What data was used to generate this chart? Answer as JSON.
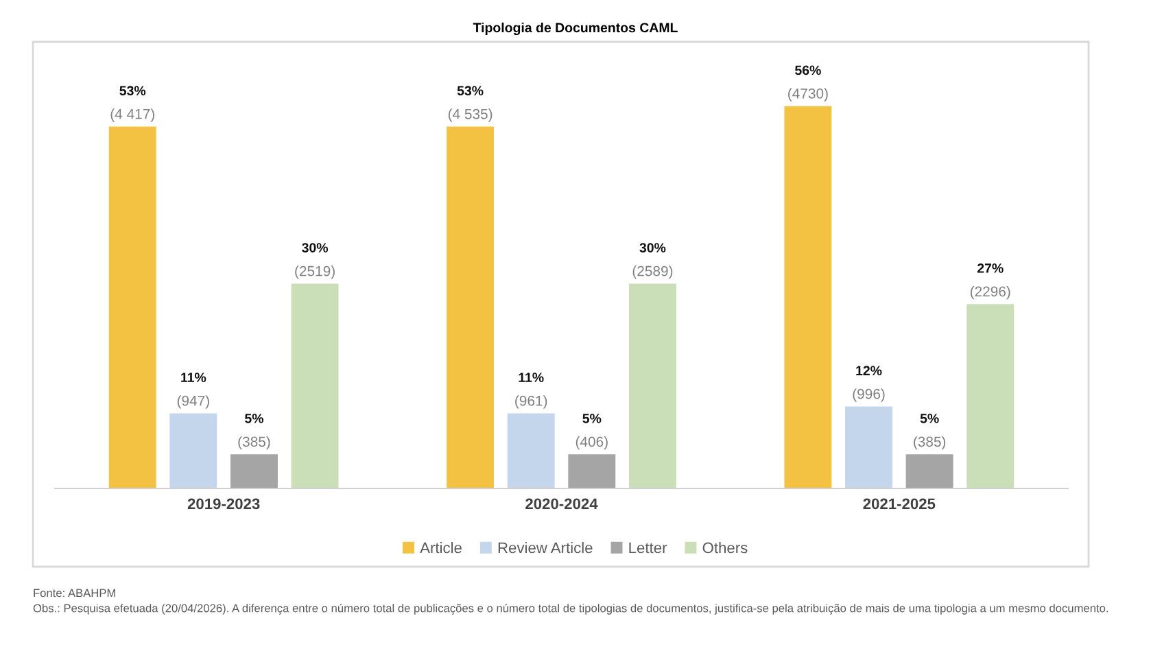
{
  "chart_data": {
    "type": "bar",
    "title": "Tipologia de Documentos CAML",
    "categories": [
      "2019-2023",
      "2020-2024",
      "2021-2025"
    ],
    "series": [
      {
        "name": "Article",
        "color": "#f4c242",
        "values": [
          53,
          53,
          56
        ],
        "value_labels": [
          "53%\n(4 417)",
          "53%\n(4 535)",
          "56%\n(4730)"
        ]
      },
      {
        "name": "Review Article",
        "color": "#c3d6ec",
        "values": [
          11,
          11,
          12
        ],
        "value_labels": [
          "11%\n(947)",
          "11%\n(961)",
          "12%\n(996)"
        ]
      },
      {
        "name": "Letter",
        "color": "#a5a5a5",
        "values": [
          5,
          5,
          5
        ],
        "value_labels": [
          "5%\n(385)",
          "5%\n(406)",
          "5%\n(385)"
        ]
      },
      {
        "name": "Others",
        "color": "#cadfb8",
        "values": [
          30,
          30,
          27
        ],
        "value_labels": [
          "30%\n(2519)",
          "30%\n(2589)",
          "27%\n(2296)"
        ]
      }
    ],
    "legend": "bottom",
    "grid": false,
    "annotations": [
      "Fonte: ABAHPM",
      "Obs.: Pesquisa efetuada (20/04/2026). A diferença entre o número total de publicações e o número total de tipologias de documentos, justifica-se pela atribuição de mais de uma tipologia a um mesmo documento."
    ]
  }
}
